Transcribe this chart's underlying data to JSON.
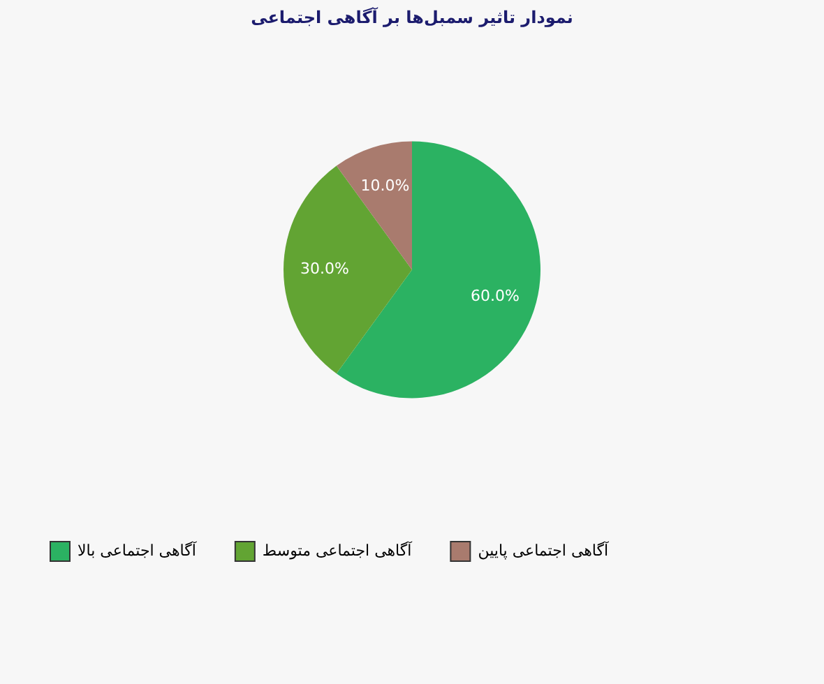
{
  "chart_data": {
    "type": "pie",
    "title": "نمودار تاثیر سمبل‌ها بر آگاهی اجتماعی",
    "categories": [
      "آگاهی اجتماعی بالا",
      "آگاهی اجتماعی متوسط",
      "آگاهی اجتماعی پایین"
    ],
    "values": [
      60,
      30,
      10
    ],
    "colors": [
      "#2bb262",
      "#62a433",
      "#a97b6e"
    ],
    "value_labels": [
      "60.0%",
      "30.0%",
      "10.0%"
    ],
    "legend": "bottom"
  }
}
